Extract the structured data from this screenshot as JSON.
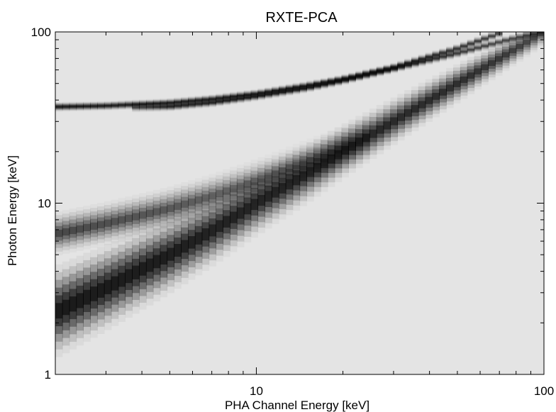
{
  "chart_data": {
    "type": "heatmap",
    "title": "RXTE-PCA",
    "xlabel": "PHA Channel Energy [keV]",
    "ylabel": "Photon Energy [keV]",
    "xscale": "log",
    "yscale": "log",
    "xlim": [
      2,
      100
    ],
    "ylim": [
      1,
      100
    ],
    "x_tick_labels": [
      "10",
      "100"
    ],
    "y_tick_labels": [
      "1",
      "10",
      "100"
    ],
    "background_color": "#e4e4e4",
    "ridge_color": "#000000",
    "grid": false,
    "series": [
      {
        "x": [
          2,
          3,
          5,
          7,
          10,
          15,
          20,
          30,
          50,
          70,
          100
        ],
        "y": [
          2.3,
          3.2,
          5.0,
          6.9,
          10.0,
          14.8,
          20.0,
          30,
          50,
          70,
          100
        ],
        "intensity": [
          1.0,
          0.98,
          0.95,
          0.9,
          0.88,
          0.85,
          0.85,
          0.82,
          0.78,
          0.7,
          0.55
        ]
      },
      {
        "x": [
          2,
          3,
          4,
          5,
          7,
          10,
          15,
          20,
          25
        ],
        "y": [
          6.6,
          7.6,
          8.5,
          9.3,
          11.0,
          13.5,
          17.5,
          21.0,
          25.0
        ],
        "intensity": [
          0.6,
          0.55,
          0.52,
          0.5,
          0.45,
          0.4,
          0.35,
          0.3,
          0.15
        ]
      },
      {
        "x": [
          2,
          3,
          5,
          7,
          10,
          15,
          20,
          30,
          50,
          70
        ],
        "y": [
          36.5,
          37.0,
          38.5,
          40.5,
          43.5,
          48.5,
          53.0,
          62.0,
          80.0,
          98.0
        ],
        "intensity": [
          0.95,
          0.9,
          0.85,
          0.85,
          0.85,
          0.85,
          0.85,
          0.8,
          0.7,
          0.6
        ]
      },
      {
        "x": [
          3.6,
          5,
          7,
          10,
          15,
          20,
          30,
          50,
          75,
          100
        ],
        "y": [
          36.0,
          36.6,
          38.6,
          42.0,
          47.0,
          52.0,
          61.0,
          75.0,
          90.0,
          100.0
        ],
        "intensity": [
          0.4,
          0.8,
          0.8,
          0.8,
          0.8,
          0.8,
          0.75,
          0.65,
          0.55,
          0.4
        ]
      }
    ]
  }
}
